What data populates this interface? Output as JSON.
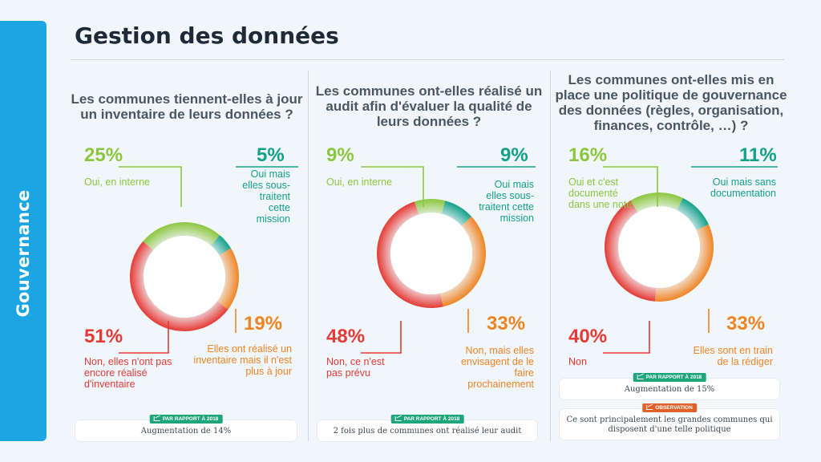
{
  "header": {
    "title": "Gestion des données",
    "side_tab": "Gouvernance"
  },
  "colors": {
    "green": "#8cc63e",
    "teal": "#14a088",
    "orange": "#ef8424",
    "red": "#e53a35"
  },
  "chart_data": [
    {
      "type": "donut",
      "title": "Les communes tiennent-elles à jour un inventaire de leurs données ?",
      "series": [
        {
          "name": "Oui, en interne",
          "value": 25,
          "label": "25%",
          "color": "#8cc63e"
        },
        {
          "name": "Oui mais elles sous-traitent cette mission",
          "value": 5,
          "label": "5%",
          "color": "#14a088"
        },
        {
          "name": "Elles ont réalisé un inventaire mais il n'est plus à jour",
          "value": 19,
          "label": "19%",
          "color": "#ef8424"
        },
        {
          "name": "Non, elles n'ont pas encore réalisé d'inventaire",
          "value": 51,
          "label": "51%",
          "color": "#e53a35"
        }
      ],
      "notes": [
        {
          "badge": "PAR RAPPORT À 2018",
          "text": "Augmentation de 14%"
        }
      ]
    },
    {
      "type": "donut",
      "title": "Les communes ont-elles réalisé un audit afin d'évaluer la qualité de leurs données ?",
      "series": [
        {
          "name": "Oui, en interne",
          "value": 9,
          "label": "9%",
          "color": "#8cc63e"
        },
        {
          "name": "Oui mais elles sous-traitent cette mission",
          "value": 9,
          "label": "9%",
          "color": "#14a088"
        },
        {
          "name": "Non, mais elles envisagent de le faire prochainement",
          "value": 33,
          "label": "33%",
          "color": "#ef8424"
        },
        {
          "name": "Non, ce n'est pas prévu",
          "value": 48,
          "label": "48%",
          "color": "#e53a35"
        }
      ],
      "notes": [
        {
          "badge": "PAR RAPPORT À 2018",
          "text": "2 fois plus de communes ont réalisé leur audit"
        }
      ]
    },
    {
      "type": "donut",
      "title": "Les communes ont-elles mis en place une politique de gouvernance des données (règles, organisation, finances, contrôle, …) ?",
      "series": [
        {
          "name": "Oui et c'est documenté dans une note",
          "value": 16,
          "label": "16%",
          "color": "#8cc63e"
        },
        {
          "name": "Oui mais sans documentation",
          "value": 11,
          "label": "11%",
          "color": "#14a088"
        },
        {
          "name": "Elles sont en train de la rédiger",
          "value": 33,
          "label": "33%",
          "color": "#ef8424"
        },
        {
          "name": "Non",
          "value": 40,
          "label": "40%",
          "color": "#e53a35"
        }
      ],
      "notes": [
        {
          "badge": "PAR RAPPORT À 2018",
          "text": "Augmentation de 15%"
        },
        {
          "badge": "OBSERVATION",
          "text": "Ce sont principalement les grandes communes qui disposent d'une telle politique"
        }
      ]
    }
  ]
}
